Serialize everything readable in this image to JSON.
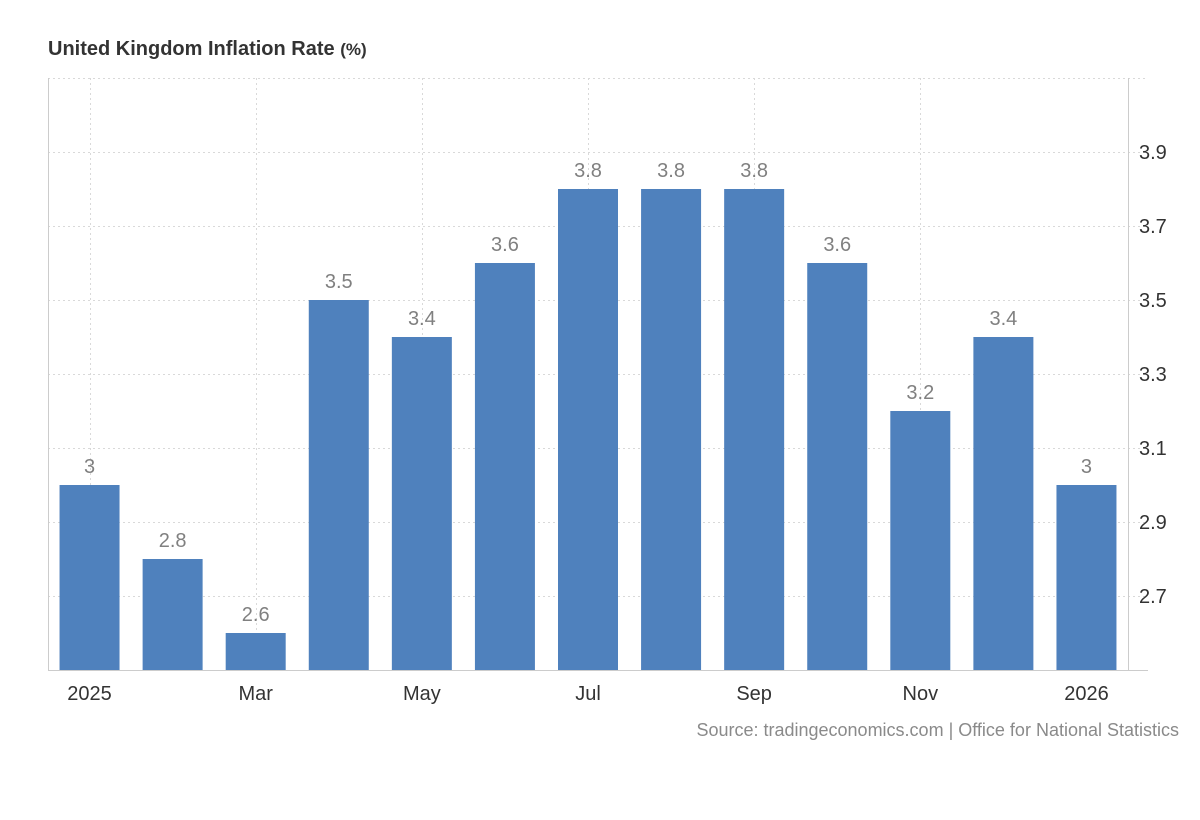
{
  "title": {
    "main": "United Kingdom Inflation Rate",
    "unit": "(%)"
  },
  "source_text": "Source: tradingeconomics.com | Office for National Statistics",
  "colors": {
    "bar": "#4f81bd",
    "value_label": "#808080",
    "tick_label": "#333333",
    "grid": "#d9d9d9",
    "axis": "#cccccc"
  },
  "chart_data": {
    "type": "bar",
    "categories": [
      "2025-01",
      "2025-02",
      "2025-03",
      "2025-04",
      "2025-05",
      "2025-06",
      "2025-07",
      "2025-08",
      "2025-09",
      "2025-10",
      "2025-11",
      "2025-12",
      "2026-01"
    ],
    "values": [
      3.0,
      2.8,
      2.6,
      3.5,
      3.4,
      3.6,
      3.8,
      3.8,
      3.8,
      3.6,
      3.2,
      3.4,
      3.0
    ],
    "value_labels": [
      "3",
      "2.8",
      "2.6",
      "3.5",
      "3.4",
      "3.6",
      "3.8",
      "3.8",
      "3.8",
      "3.6",
      "3.2",
      "3.4",
      "3"
    ],
    "x_tick_labels": [
      "2025",
      "",
      "Mar",
      "",
      "May",
      "",
      "Jul",
      "",
      "Sep",
      "",
      "Nov",
      "",
      "2026"
    ],
    "y_ticks": [
      2.7,
      2.9,
      3.1,
      3.3,
      3.5,
      3.7,
      3.9
    ],
    "y_tick_labels": [
      "2.7",
      "2.9",
      "3.1",
      "3.3",
      "3.5",
      "3.7",
      "3.9"
    ],
    "ylim": [
      2.5,
      4.1
    ],
    "y_axis_side": "right",
    "grid": true,
    "title": "United Kingdom Inflation Rate (%)",
    "xlabel": "",
    "ylabel": ""
  }
}
